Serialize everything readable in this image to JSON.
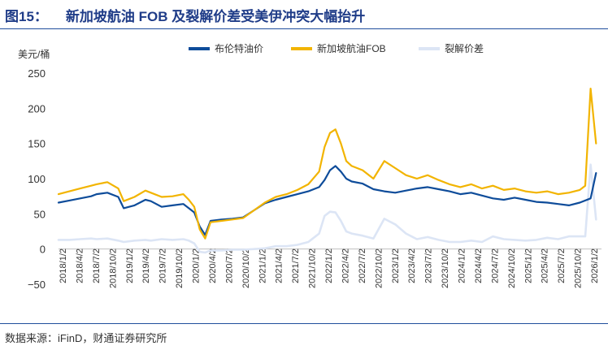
{
  "header": {
    "figure_no": "图15：",
    "title": "新加坡航油 FOB 及裂解价差受美伊冲突大幅抬升"
  },
  "footer": {
    "source": "数据来源：iFinD，财通证券研究所"
  },
  "chart_data": {
    "type": "line",
    "title": "新加坡航油 FOB 及裂解价差受美伊冲突大幅抬升",
    "ylabel": "美元/桶",
    "ylim": [
      -50,
      250
    ],
    "yticks": [
      "250",
      "200",
      "150",
      "100",
      "50",
      "0",
      "−50"
    ],
    "xticks": [
      "2018/1/2",
      "2018/4/2",
      "2018/7/2",
      "2018/10/2",
      "2019/1/2",
      "2019/4/2",
      "2019/7/2",
      "2019/10/2",
      "2020/1/2",
      "2020/4/2",
      "2020/7/2",
      "2020/10/2",
      "2021/1/2",
      "2021/4/2",
      "2021/7/2",
      "2021/10/2",
      "2022/1/2",
      "2022/4/2",
      "2022/7/2",
      "2022/10/2",
      "2023/1/2",
      "2023/4/2",
      "2023/7/2",
      "2023/10/2",
      "2024/1/2",
      "2024/4/2",
      "2024/7/2",
      "2024/10/2",
      "2025/1/2",
      "2025/4/2",
      "2025/7/2",
      "2025/10/2",
      "2026/1/2"
    ],
    "x_months_start": "2018-01",
    "legend": [
      "布伦特油价",
      "新加坡航油FOB",
      "裂解价差"
    ],
    "series": [
      {
        "name": "布伦特油价",
        "color": "#0e4c9a",
        "x": [
          0,
          2,
          4,
          6,
          7,
          9,
          11,
          12,
          14,
          16,
          17,
          19,
          21,
          23,
          24,
          25,
          26,
          27,
          28,
          30,
          32,
          34,
          36,
          38,
          40,
          42,
          44,
          46,
          48,
          49,
          50,
          51,
          52,
          53,
          54,
          56,
          58,
          60,
          62,
          64,
          66,
          68,
          70,
          72,
          74,
          76,
          78,
          80,
          82,
          84,
          86,
          88,
          90,
          92,
          94,
          96,
          98,
          99
        ],
        "y": [
          66,
          69,
          72,
          75,
          78,
          80,
          74,
          58,
          62,
          70,
          68,
          60,
          62,
          64,
          58,
          52,
          32,
          20,
          40,
          42,
          43,
          45,
          55,
          65,
          70,
          74,
          78,
          82,
          88,
          98,
          112,
          118,
          110,
          100,
          96,
          93,
          85,
          82,
          80,
          83,
          86,
          88,
          85,
          82,
          78,
          80,
          76,
          72,
          70,
          73,
          70,
          67,
          66,
          64,
          62,
          66,
          72,
          108
        ]
      },
      {
        "name": "新加坡航油FOB",
        "color": "#f2b400",
        "x": [
          0,
          2,
          4,
          6,
          7,
          9,
          11,
          12,
          14,
          16,
          17,
          19,
          21,
          23,
          24,
          25,
          26,
          27,
          28,
          30,
          32,
          34,
          36,
          38,
          40,
          42,
          44,
          46,
          48,
          49,
          50,
          51,
          52,
          53,
          54,
          56,
          58,
          60,
          62,
          64,
          66,
          68,
          70,
          72,
          74,
          76,
          78,
          80,
          82,
          84,
          86,
          88,
          90,
          92,
          94,
          96,
          97,
          98,
          99
        ],
        "y": [
          78,
          82,
          86,
          90,
          92,
          95,
          86,
          68,
          74,
          83,
          80,
          74,
          75,
          78,
          70,
          60,
          28,
          15,
          38,
          40,
          42,
          44,
          55,
          66,
          74,
          78,
          84,
          92,
          110,
          145,
          165,
          170,
          150,
          125,
          118,
          112,
          100,
          125,
          115,
          105,
          100,
          105,
          98,
          92,
          88,
          92,
          86,
          90,
          84,
          86,
          82,
          80,
          82,
          78,
          80,
          84,
          90,
          228,
          150
        ]
      },
      {
        "name": "裂解价差",
        "color": "#dce5f5",
        "x": [
          0,
          2,
          4,
          6,
          7,
          9,
          11,
          12,
          14,
          16,
          17,
          19,
          21,
          23,
          24,
          25,
          26,
          27,
          28,
          30,
          32,
          34,
          36,
          38,
          40,
          42,
          44,
          46,
          48,
          49,
          50,
          51,
          52,
          53,
          54,
          56,
          58,
          60,
          62,
          64,
          66,
          68,
          70,
          72,
          74,
          76,
          78,
          80,
          82,
          84,
          86,
          88,
          90,
          92,
          94,
          96,
          97,
          98,
          99
        ],
        "y": [
          13,
          13,
          14,
          15,
          14,
          15,
          12,
          10,
          12,
          13,
          12,
          14,
          13,
          14,
          12,
          8,
          -4,
          -5,
          -2,
          -2,
          -1,
          -1,
          0,
          1,
          4,
          4,
          6,
          10,
          22,
          47,
          53,
          52,
          40,
          25,
          22,
          19,
          15,
          43,
          35,
          22,
          14,
          17,
          13,
          10,
          10,
          12,
          10,
          18,
          14,
          13,
          12,
          13,
          16,
          14,
          18,
          18,
          18,
          120,
          42
        ]
      }
    ]
  }
}
